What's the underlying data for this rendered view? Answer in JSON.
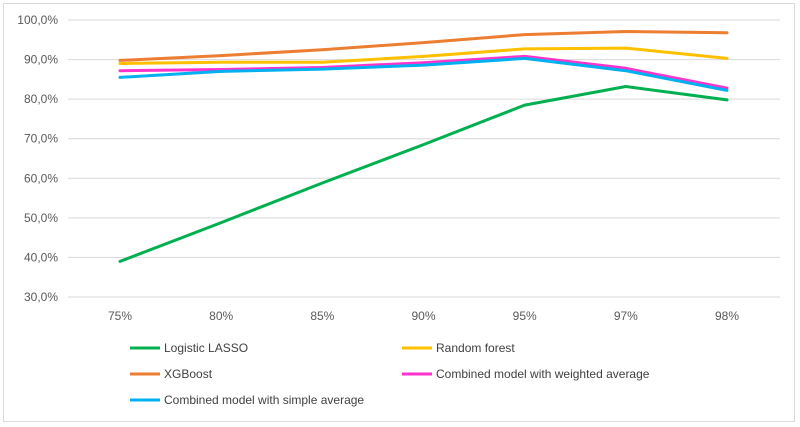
{
  "chart_data": {
    "type": "line",
    "title": "",
    "xlabel": "",
    "ylabel": "",
    "categories": [
      "75%",
      "80%",
      "85%",
      "90%",
      "95%",
      "97%",
      "98%"
    ],
    "ylim": [
      30,
      100
    ],
    "yticks": [
      30,
      40,
      50,
      60,
      70,
      80,
      90,
      100
    ],
    "ytick_labels": [
      "30,0%",
      "40,0%",
      "50,0%",
      "60,0%",
      "70,0%",
      "80,0%",
      "90,0%",
      "100,0%"
    ],
    "grid": true,
    "legend_position": "bottom",
    "series": [
      {
        "name": "Logistic LASSO",
        "color": "#00b050",
        "values": [
          39.0,
          48.8,
          58.8,
          68.5,
          78.5,
          83.2,
          79.8
        ]
      },
      {
        "name": "Random forest",
        "color": "#ffc000",
        "values": [
          89.0,
          89.3,
          89.3,
          90.8,
          92.7,
          92.9,
          90.3
        ]
      },
      {
        "name": "XGBoost",
        "color": "#ed7d31",
        "values": [
          89.8,
          91.0,
          92.5,
          94.3,
          96.3,
          97.1,
          96.8
        ]
      },
      {
        "name": "Combined model with weighted average",
        "color": "#ff33cc",
        "values": [
          87.2,
          87.5,
          88.0,
          89.2,
          90.8,
          87.8,
          82.8
        ]
      },
      {
        "name": "Combined model with simple average",
        "color": "#00b0f0",
        "values": [
          85.5,
          87.0,
          87.6,
          88.6,
          90.3,
          87.2,
          82.2
        ]
      }
    ]
  }
}
